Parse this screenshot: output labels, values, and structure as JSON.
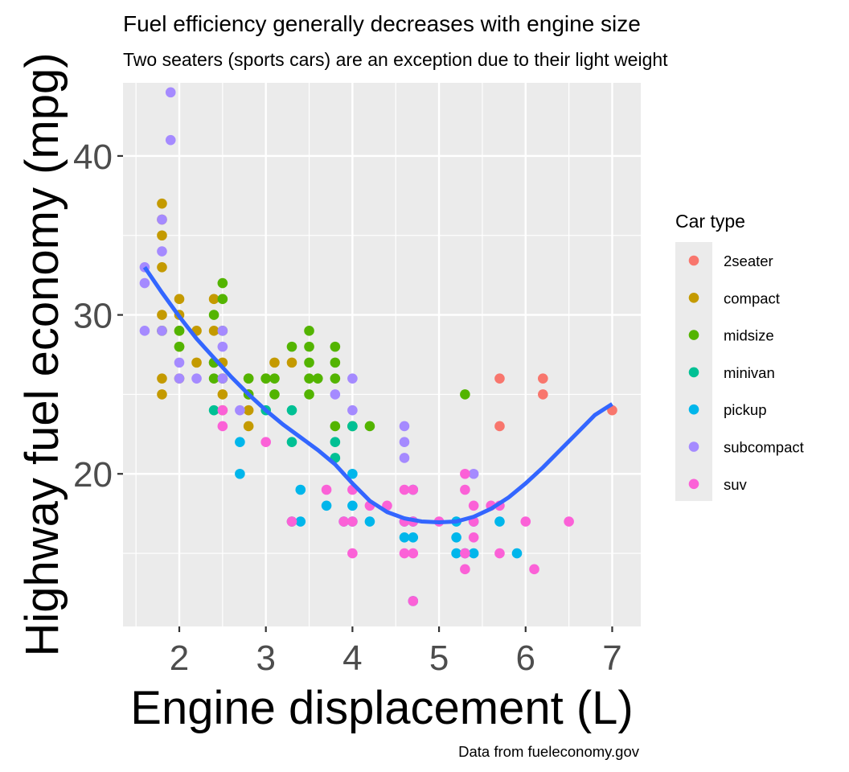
{
  "chart_data": {
    "type": "scatter",
    "title": "Fuel efficiency generally decreases with engine size",
    "subtitle": "Two seaters (sports cars) are an exception due to their light weight",
    "caption": "Data from fueleconomy.gov",
    "xlabel": "Engine displacement (L)",
    "ylabel": "Highway fuel economy (mpg)",
    "xlim": [
      1.35,
      7.33
    ],
    "ylim": [
      10.4,
      44.6
    ],
    "x_ticks": [
      2,
      3,
      4,
      5,
      6,
      7
    ],
    "y_ticks": [
      20,
      30,
      40
    ],
    "grid": true,
    "legend": {
      "title": "Car type",
      "position": "right",
      "entries": [
        {
          "name": "2seater",
          "color": "#F8766D"
        },
        {
          "name": "compact",
          "color": "#C49A00"
        },
        {
          "name": "midsize",
          "color": "#53B400"
        },
        {
          "name": "minivan",
          "color": "#00C094"
        },
        {
          "name": "pickup",
          "color": "#00B6EB"
        },
        {
          "name": "subcompact",
          "color": "#A58AFF"
        },
        {
          "name": "suv",
          "color": "#FB61D7"
        }
      ]
    },
    "smooth": {
      "color": "#3366FF",
      "method": "loess",
      "points": [
        [
          1.6,
          33.0
        ],
        [
          1.8,
          31.4
        ],
        [
          2.0,
          29.9
        ],
        [
          2.2,
          28.5
        ],
        [
          2.4,
          27.3
        ],
        [
          2.6,
          26.1
        ],
        [
          2.8,
          25.0
        ],
        [
          3.0,
          24.0
        ],
        [
          3.2,
          23.1
        ],
        [
          3.4,
          22.3
        ],
        [
          3.6,
          21.5
        ],
        [
          3.8,
          20.6
        ],
        [
          4.0,
          19.4
        ],
        [
          4.2,
          18.3
        ],
        [
          4.4,
          17.6
        ],
        [
          4.6,
          17.2
        ],
        [
          4.8,
          17.0
        ],
        [
          5.0,
          16.95
        ],
        [
          5.2,
          17.0
        ],
        [
          5.4,
          17.3
        ],
        [
          5.6,
          17.8
        ],
        [
          5.8,
          18.5
        ],
        [
          6.0,
          19.4
        ],
        [
          6.2,
          20.4
        ],
        [
          6.4,
          21.5
        ],
        [
          6.6,
          22.6
        ],
        [
          6.8,
          23.7
        ],
        [
          7.0,
          24.4
        ]
      ]
    },
    "series": [
      {
        "name": "2seater",
        "points": [
          [
            5.7,
            26
          ],
          [
            5.7,
            23
          ],
          [
            6.2,
            26
          ],
          [
            6.2,
            25
          ],
          [
            7.0,
            24
          ]
        ]
      },
      {
        "name": "compact",
        "points": [
          [
            1.8,
            29
          ],
          [
            1.8,
            26
          ],
          [
            1.8,
            25
          ],
          [
            1.8,
            33
          ],
          [
            1.8,
            35
          ],
          [
            1.8,
            36
          ],
          [
            1.8,
            37
          ],
          [
            1.8,
            30
          ],
          [
            2.0,
            31
          ],
          [
            2.0,
            30
          ],
          [
            2.0,
            29
          ],
          [
            2.0,
            26
          ],
          [
            2.0,
            28
          ],
          [
            2.2,
            29
          ],
          [
            2.2,
            27
          ],
          [
            2.4,
            31
          ],
          [
            2.4,
            27
          ],
          [
            2.4,
            29
          ],
          [
            2.5,
            25
          ],
          [
            2.5,
            27
          ],
          [
            2.5,
            24
          ],
          [
            2.5,
            26
          ],
          [
            2.8,
            26
          ],
          [
            2.8,
            25
          ],
          [
            2.8,
            23
          ],
          [
            2.8,
            24
          ],
          [
            3.0,
            26
          ],
          [
            3.1,
            27
          ],
          [
            3.3,
            27
          ]
        ]
      },
      {
        "name": "midsize",
        "points": [
          [
            1.8,
            29
          ],
          [
            2.0,
            29
          ],
          [
            2.0,
            28
          ],
          [
            2.4,
            30
          ],
          [
            2.4,
            27
          ],
          [
            2.4,
            26
          ],
          [
            2.5,
            31
          ],
          [
            2.5,
            32
          ],
          [
            2.5,
            29
          ],
          [
            2.5,
            26
          ],
          [
            2.8,
            26
          ],
          [
            2.8,
            25
          ],
          [
            3.0,
            26
          ],
          [
            3.1,
            26
          ],
          [
            3.1,
            25
          ],
          [
            3.3,
            28
          ],
          [
            3.5,
            29
          ],
          [
            3.5,
            28
          ],
          [
            3.5,
            27
          ],
          [
            3.5,
            26
          ],
          [
            3.5,
            25
          ],
          [
            3.6,
            26
          ],
          [
            3.8,
            28
          ],
          [
            3.8,
            27
          ],
          [
            3.8,
            26
          ],
          [
            3.8,
            23
          ],
          [
            4.0,
            23
          ],
          [
            4.2,
            23
          ],
          [
            5.3,
            25
          ]
        ]
      },
      {
        "name": "minivan",
        "points": [
          [
            2.4,
            24
          ],
          [
            3.0,
            24
          ],
          [
            3.3,
            24
          ],
          [
            3.3,
            22
          ],
          [
            3.3,
            17
          ],
          [
            3.8,
            22
          ],
          [
            3.8,
            21
          ],
          [
            4.0,
            23
          ]
        ]
      },
      {
        "name": "pickup",
        "points": [
          [
            2.7,
            22
          ],
          [
            2.7,
            20
          ],
          [
            3.4,
            19
          ],
          [
            3.4,
            17
          ],
          [
            3.7,
            18
          ],
          [
            3.9,
            17
          ],
          [
            4.0,
            20
          ],
          [
            4.0,
            18
          ],
          [
            4.0,
            17
          ],
          [
            4.2,
            17
          ],
          [
            4.6,
            17
          ],
          [
            4.6,
            16
          ],
          [
            4.7,
            19
          ],
          [
            4.7,
            17
          ],
          [
            4.7,
            16
          ],
          [
            4.7,
            12
          ],
          [
            5.2,
            17
          ],
          [
            5.2,
            16
          ],
          [
            5.2,
            15
          ],
          [
            5.3,
            15
          ],
          [
            5.4,
            17
          ],
          [
            5.4,
            15
          ],
          [
            5.7,
            17
          ],
          [
            5.9,
            15
          ]
        ]
      },
      {
        "name": "subcompact",
        "points": [
          [
            1.6,
            33
          ],
          [
            1.6,
            32
          ],
          [
            1.6,
            29
          ],
          [
            1.8,
            34
          ],
          [
            1.8,
            36
          ],
          [
            1.8,
            29
          ],
          [
            1.9,
            44
          ],
          [
            1.9,
            41
          ],
          [
            2.0,
            27
          ],
          [
            2.0,
            26
          ],
          [
            2.2,
            26
          ],
          [
            2.5,
            29
          ],
          [
            2.5,
            28
          ],
          [
            2.5,
            26
          ],
          [
            2.7,
            24
          ],
          [
            3.8,
            25
          ],
          [
            4.0,
            26
          ],
          [
            4.0,
            24
          ],
          [
            4.6,
            23
          ],
          [
            4.6,
            22
          ],
          [
            4.6,
            21
          ],
          [
            5.4,
            20
          ]
        ]
      },
      {
        "name": "suv",
        "points": [
          [
            2.5,
            24
          ],
          [
            2.5,
            23
          ],
          [
            3.0,
            22
          ],
          [
            3.3,
            17
          ],
          [
            3.7,
            19
          ],
          [
            3.9,
            17
          ],
          [
            4.0,
            19
          ],
          [
            4.0,
            17
          ],
          [
            4.0,
            15
          ],
          [
            4.2,
            18
          ],
          [
            4.4,
            18
          ],
          [
            4.6,
            19
          ],
          [
            4.6,
            17
          ],
          [
            4.6,
            15
          ],
          [
            4.7,
            19
          ],
          [
            4.7,
            17
          ],
          [
            4.7,
            15
          ],
          [
            4.7,
            12
          ],
          [
            5.0,
            17
          ],
          [
            5.3,
            20
          ],
          [
            5.3,
            19
          ],
          [
            5.3,
            15
          ],
          [
            5.3,
            14
          ],
          [
            5.4,
            18
          ],
          [
            5.4,
            17
          ],
          [
            5.4,
            16
          ],
          [
            5.6,
            18
          ],
          [
            5.7,
            18
          ],
          [
            5.7,
            15
          ],
          [
            6.0,
            17
          ],
          [
            6.1,
            14
          ],
          [
            6.5,
            17
          ]
        ]
      }
    ]
  }
}
